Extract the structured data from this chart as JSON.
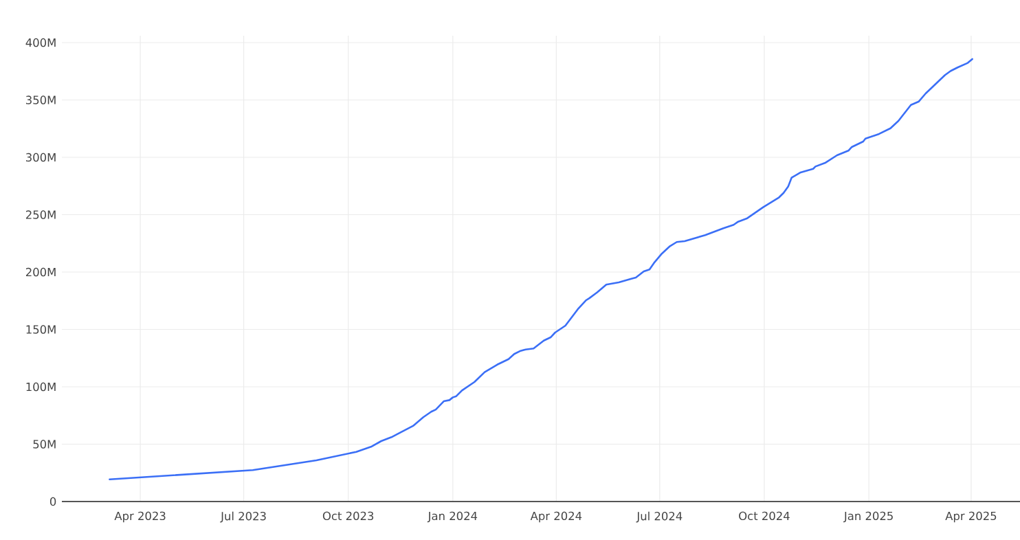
{
  "chart_data": {
    "type": "line",
    "color": "#3b6ff6",
    "x": [
      "2023-03-05",
      "2023-07-09",
      "2023-09-03",
      "2023-10-08",
      "2023-10-21",
      "2023-10-30",
      "2023-11-08",
      "2023-11-16",
      "2023-11-27",
      "2023-12-06",
      "2023-12-13",
      "2023-12-17",
      "2023-12-24",
      "2023-12-29",
      "2024-01-01",
      "2024-01-04",
      "2024-01-09",
      "2024-01-20",
      "2024-01-29",
      "2024-02-09",
      "2024-02-19",
      "2024-02-24",
      "2024-02-29",
      "2024-03-05",
      "2024-03-12",
      "2024-03-21",
      "2024-03-27",
      "2024-03-31",
      "2024-04-09",
      "2024-04-20",
      "2024-04-27",
      "2024-04-30",
      "2024-05-07",
      "2024-05-15",
      "2024-05-26",
      "2024-06-06",
      "2024-06-10",
      "2024-06-17",
      "2024-06-22",
      "2024-06-26",
      "2024-07-03",
      "2024-07-10",
      "2024-07-16",
      "2024-07-23",
      "2024-08-10",
      "2024-08-26",
      "2024-09-04",
      "2024-09-08",
      "2024-09-16",
      "2024-09-30",
      "2024-10-14",
      "2024-10-18",
      "2024-10-22",
      "2024-10-25",
      "2024-11-02",
      "2024-11-13",
      "2024-11-15",
      "2024-11-24",
      "2024-12-04",
      "2024-12-14",
      "2024-12-17",
      "2024-12-27",
      "2024-12-29",
      "2025-01-10",
      "2025-01-20",
      "2025-01-27",
      "2025-02-07",
      "2025-02-14",
      "2025-02-20",
      "2025-02-27",
      "2025-03-09",
      "2025-03-14",
      "2025-03-20",
      "2025-03-29",
      "2025-04-02"
    ],
    "values": [
      19300000,
      27400000,
      35900000,
      43300000,
      47700000,
      52700000,
      56100000,
      60300000,
      65900000,
      73500000,
      78300000,
      80200000,
      87400000,
      88400000,
      90800000,
      91800000,
      96800000,
      104200000,
      112800000,
      119300000,
      124100000,
      128600000,
      131100000,
      132500000,
      133400000,
      140300000,
      143100000,
      147300000,
      153300000,
      167700000,
      175300000,
      177200000,
      182300000,
      189100000,
      191000000,
      194200000,
      195200000,
      200600000,
      202200000,
      208000000,
      216200000,
      222600000,
      226200000,
      227000000,
      232200000,
      238200000,
      241200000,
      243900000,
      246900000,
      256500000,
      265100000,
      269000000,
      274500000,
      282200000,
      286900000,
      290000000,
      292000000,
      295400000,
      301800000,
      305800000,
      309000000,
      313800000,
      316300000,
      320400000,
      325300000,
      331700000,
      345700000,
      348700000,
      355700000,
      362300000,
      371700000,
      375300000,
      378300000,
      382300000,
      385700000
    ],
    "xlim": [
      "2023-01-22",
      "2025-05-14"
    ],
    "xticks": [
      {
        "value": "2023-04-01",
        "label": "Apr 2023"
      },
      {
        "value": "2023-07-01",
        "label": "Jul 2023"
      },
      {
        "value": "2023-10-01",
        "label": "Oct 2023"
      },
      {
        "value": "2024-01-01",
        "label": "Jan 2024"
      },
      {
        "value": "2024-04-01",
        "label": "Apr 2024"
      },
      {
        "value": "2024-07-01",
        "label": "Jul 2024"
      },
      {
        "value": "2024-10-01",
        "label": "Oct 2024"
      },
      {
        "value": "2025-01-01",
        "label": "Jan 2025"
      },
      {
        "value": "2025-04-01",
        "label": "Apr 2025"
      }
    ],
    "ylim": [
      0,
      406000000
    ],
    "yticks": [
      0,
      {
        "value": 50000000,
        "label": "50M"
      },
      {
        "value": 100000000,
        "label": "100M"
      },
      {
        "value": 150000000,
        "label": "150M"
      },
      {
        "value": 200000000,
        "label": "200M"
      },
      {
        "value": 250000000,
        "label": "250M"
      },
      {
        "value": 300000000,
        "label": "300M"
      },
      {
        "value": 350000000,
        "label": "350M"
      },
      {
        "value": 400000000,
        "label": "400M"
      }
    ],
    "grid": true
  }
}
